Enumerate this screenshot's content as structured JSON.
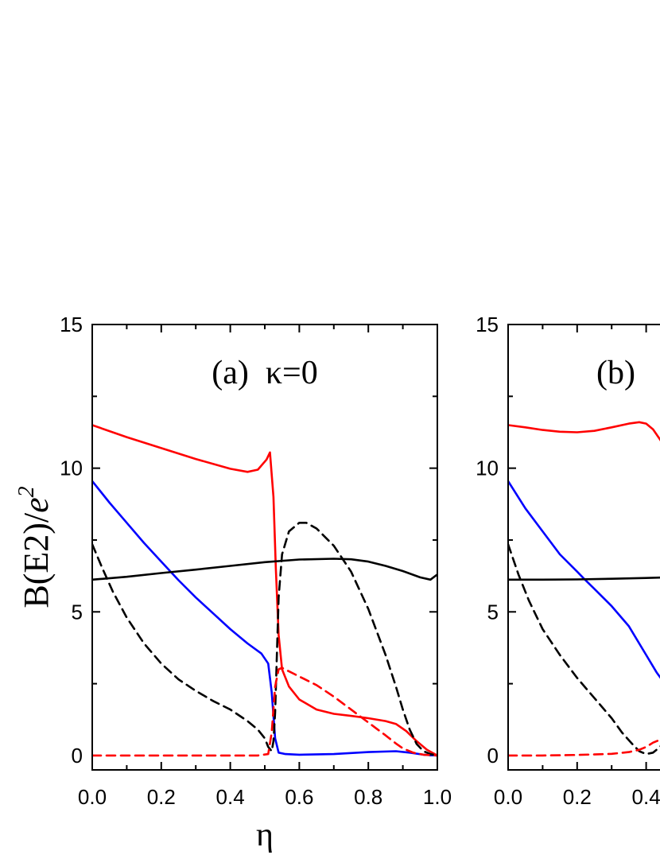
{
  "ylabel_main": "B(E2)/",
  "ylabel_italic": "e",
  "ylabel_sup": "2",
  "xlabel": "η",
  "chart_data": [
    {
      "type": "line",
      "panel": "(a)  κ=0",
      "xlim": [
        0,
        1
      ],
      "ylim": [
        -0.5,
        15
      ],
      "xticks": [
        "0.0",
        "0.2",
        "0.4",
        "0.6",
        "0.8",
        "1.0"
      ],
      "yticks": [
        "0",
        "5",
        "10",
        "15"
      ],
      "grid": false,
      "series": [
        {
          "color": "#ff0000",
          "dash": "solid",
          "x": [
            0,
            0.1,
            0.2,
            0.3,
            0.4,
            0.45,
            0.48,
            0.505,
            0.515,
            0.525,
            0.532,
            0.54,
            0.55,
            0.57,
            0.6,
            0.65,
            0.7,
            0.75,
            0.8,
            0.85,
            0.88,
            0.91,
            0.94,
            0.97,
            1.0
          ],
          "y": [
            11.5,
            11.08,
            10.7,
            10.32,
            9.98,
            9.87,
            9.95,
            10.3,
            10.55,
            9.0,
            6.5,
            4.2,
            3.0,
            2.4,
            1.95,
            1.6,
            1.45,
            1.38,
            1.3,
            1.2,
            1.1,
            0.85,
            0.5,
            0.2,
            0.0
          ]
        },
        {
          "color": "#0000ff",
          "dash": "solid",
          "x": [
            0,
            0.05,
            0.1,
            0.15,
            0.2,
            0.25,
            0.3,
            0.35,
            0.4,
            0.45,
            0.49,
            0.51,
            0.52,
            0.53,
            0.54,
            0.56,
            0.6,
            0.7,
            0.8,
            0.88,
            0.92,
            0.96,
            1.0
          ],
          "y": [
            9.55,
            8.8,
            8.1,
            7.4,
            6.75,
            6.1,
            5.5,
            4.95,
            4.4,
            3.9,
            3.55,
            3.2,
            2.2,
            0.6,
            0.1,
            0.05,
            0.03,
            0.05,
            0.12,
            0.15,
            0.1,
            0.03,
            0.0
          ]
        },
        {
          "color": "#000000",
          "dash": "solid",
          "x": [
            0,
            0.1,
            0.2,
            0.3,
            0.4,
            0.5,
            0.6,
            0.7,
            0.75,
            0.8,
            0.85,
            0.9,
            0.95,
            0.98,
            1.0
          ],
          "y": [
            6.12,
            6.22,
            6.35,
            6.47,
            6.6,
            6.73,
            6.82,
            6.85,
            6.83,
            6.75,
            6.6,
            6.42,
            6.2,
            6.12,
            6.3
          ]
        },
        {
          "color": "#000000",
          "dash": "dashed",
          "x": [
            0,
            0.03,
            0.06,
            0.1,
            0.15,
            0.2,
            0.25,
            0.3,
            0.35,
            0.4,
            0.45,
            0.48,
            0.5,
            0.51,
            0.52,
            0.525,
            0.53,
            0.535,
            0.54,
            0.55,
            0.57,
            0.6,
            0.62,
            0.65,
            0.7,
            0.75,
            0.8,
            0.85,
            0.88,
            0.9,
            0.92,
            0.94,
            0.96,
            0.98,
            1.0
          ],
          "y": [
            7.35,
            6.5,
            5.7,
            4.8,
            3.9,
            3.2,
            2.65,
            2.25,
            1.9,
            1.6,
            1.2,
            0.9,
            0.6,
            0.3,
            0.15,
            0.5,
            1.5,
            3.5,
            5.5,
            7.0,
            7.8,
            8.1,
            8.1,
            7.9,
            7.3,
            6.4,
            5.1,
            3.5,
            2.4,
            1.6,
            0.9,
            0.4,
            0.15,
            0.05,
            0.0
          ]
        },
        {
          "color": "#ff0000",
          "dash": "dashed",
          "x": [
            0,
            0.2,
            0.4,
            0.48,
            0.51,
            0.52,
            0.53,
            0.54,
            0.55,
            0.6,
            0.65,
            0.7,
            0.75,
            0.8,
            0.85,
            0.88,
            0.9,
            0.93,
            0.96,
            1.0
          ],
          "y": [
            0.0,
            0.0,
            0.0,
            0.0,
            0.05,
            0.8,
            2.4,
            3.0,
            3.05,
            2.75,
            2.45,
            2.05,
            1.6,
            1.15,
            0.7,
            0.42,
            0.25,
            0.1,
            0.03,
            0.0
          ]
        }
      ]
    },
    {
      "type": "line",
      "panel": "(b)",
      "xlim": [
        0,
        1
      ],
      "ylim": [
        -0.5,
        15
      ],
      "xticks": [
        "0.0",
        "0.2",
        "0.4"
      ],
      "yticks": [
        "0",
        "5",
        "10",
        "15"
      ],
      "grid": false,
      "series": [
        {
          "color": "#ff0000",
          "dash": "solid",
          "x": [
            0,
            0.05,
            0.1,
            0.15,
            0.2,
            0.25,
            0.3,
            0.35,
            0.38,
            0.4,
            0.42,
            0.44,
            0.46
          ],
          "y": [
            11.5,
            11.42,
            11.33,
            11.27,
            11.25,
            11.3,
            11.42,
            11.55,
            11.6,
            11.55,
            11.35,
            11.0,
            10.6
          ]
        },
        {
          "color": "#0000ff",
          "dash": "solid",
          "x": [
            0,
            0.05,
            0.1,
            0.15,
            0.2,
            0.22,
            0.25,
            0.3,
            0.35,
            0.4,
            0.43,
            0.46
          ],
          "y": [
            9.55,
            8.6,
            7.8,
            7.0,
            6.4,
            6.15,
            5.8,
            5.2,
            4.5,
            3.5,
            2.9,
            2.4
          ]
        },
        {
          "color": "#000000",
          "dash": "solid",
          "x": [
            0,
            0.1,
            0.2,
            0.3,
            0.4,
            0.46
          ],
          "y": [
            6.12,
            6.12,
            6.13,
            6.15,
            6.18,
            6.2
          ]
        },
        {
          "color": "#000000",
          "dash": "dashed",
          "x": [
            0,
            0.03,
            0.06,
            0.1,
            0.15,
            0.2,
            0.25,
            0.3,
            0.33,
            0.36,
            0.38,
            0.4,
            0.42,
            0.44,
            0.46
          ],
          "y": [
            7.35,
            6.3,
            5.4,
            4.4,
            3.5,
            2.7,
            2.0,
            1.3,
            0.8,
            0.4,
            0.15,
            0.05,
            0.1,
            0.3,
            0.6
          ]
        },
        {
          "color": "#ff0000",
          "dash": "dashed",
          "x": [
            0,
            0.1,
            0.2,
            0.3,
            0.35,
            0.38,
            0.4,
            0.42,
            0.44,
            0.46
          ],
          "y": [
            0.0,
            0.0,
            0.02,
            0.06,
            0.12,
            0.2,
            0.3,
            0.45,
            0.55,
            0.6
          ]
        }
      ]
    }
  ]
}
